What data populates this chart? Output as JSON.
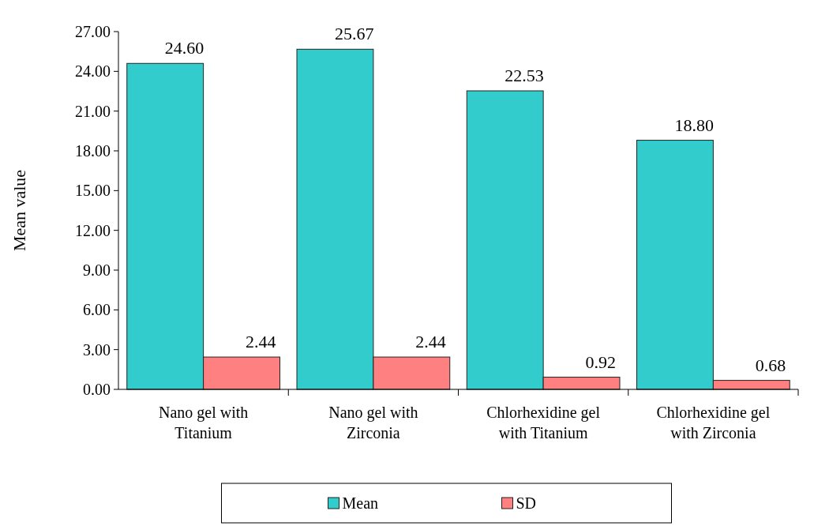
{
  "chart_data": {
    "type": "bar",
    "ylabel": "Mean value",
    "categories": [
      "Nano gel with Titanium",
      "Nano gel with Zirconia",
      "Chlorhexidine gel with Titanium",
      "Chlorhexidine gel with Zirconia"
    ],
    "series": [
      {
        "name": "Mean",
        "color": "#33cccc",
        "values": [
          24.6,
          25.67,
          22.53,
          18.8
        ],
        "value_labels": [
          "24.60",
          "25.67",
          "22.53",
          "18.80"
        ]
      },
      {
        "name": "SD",
        "color": "#ff8080",
        "values": [
          2.44,
          2.44,
          0.92,
          0.68
        ],
        "value_labels": [
          "2.44",
          "2.44",
          "0.92",
          "0.68"
        ]
      }
    ],
    "ylim": [
      0,
      27
    ],
    "yticks": [
      {
        "value": 0,
        "label": "0.00"
      },
      {
        "value": 3,
        "label": "3.00"
      },
      {
        "value": 6,
        "label": "6.00"
      },
      {
        "value": 9,
        "label": "9.00"
      },
      {
        "value": 12,
        "label": "12.00"
      },
      {
        "value": 15,
        "label": "15.00"
      },
      {
        "value": 18,
        "label": "18.00"
      },
      {
        "value": 21,
        "label": "21.00"
      },
      {
        "value": 24,
        "label": "24.00"
      },
      {
        "value": 27,
        "label": "27.00"
      }
    ],
    "grid": false,
    "legend": "bottom"
  }
}
